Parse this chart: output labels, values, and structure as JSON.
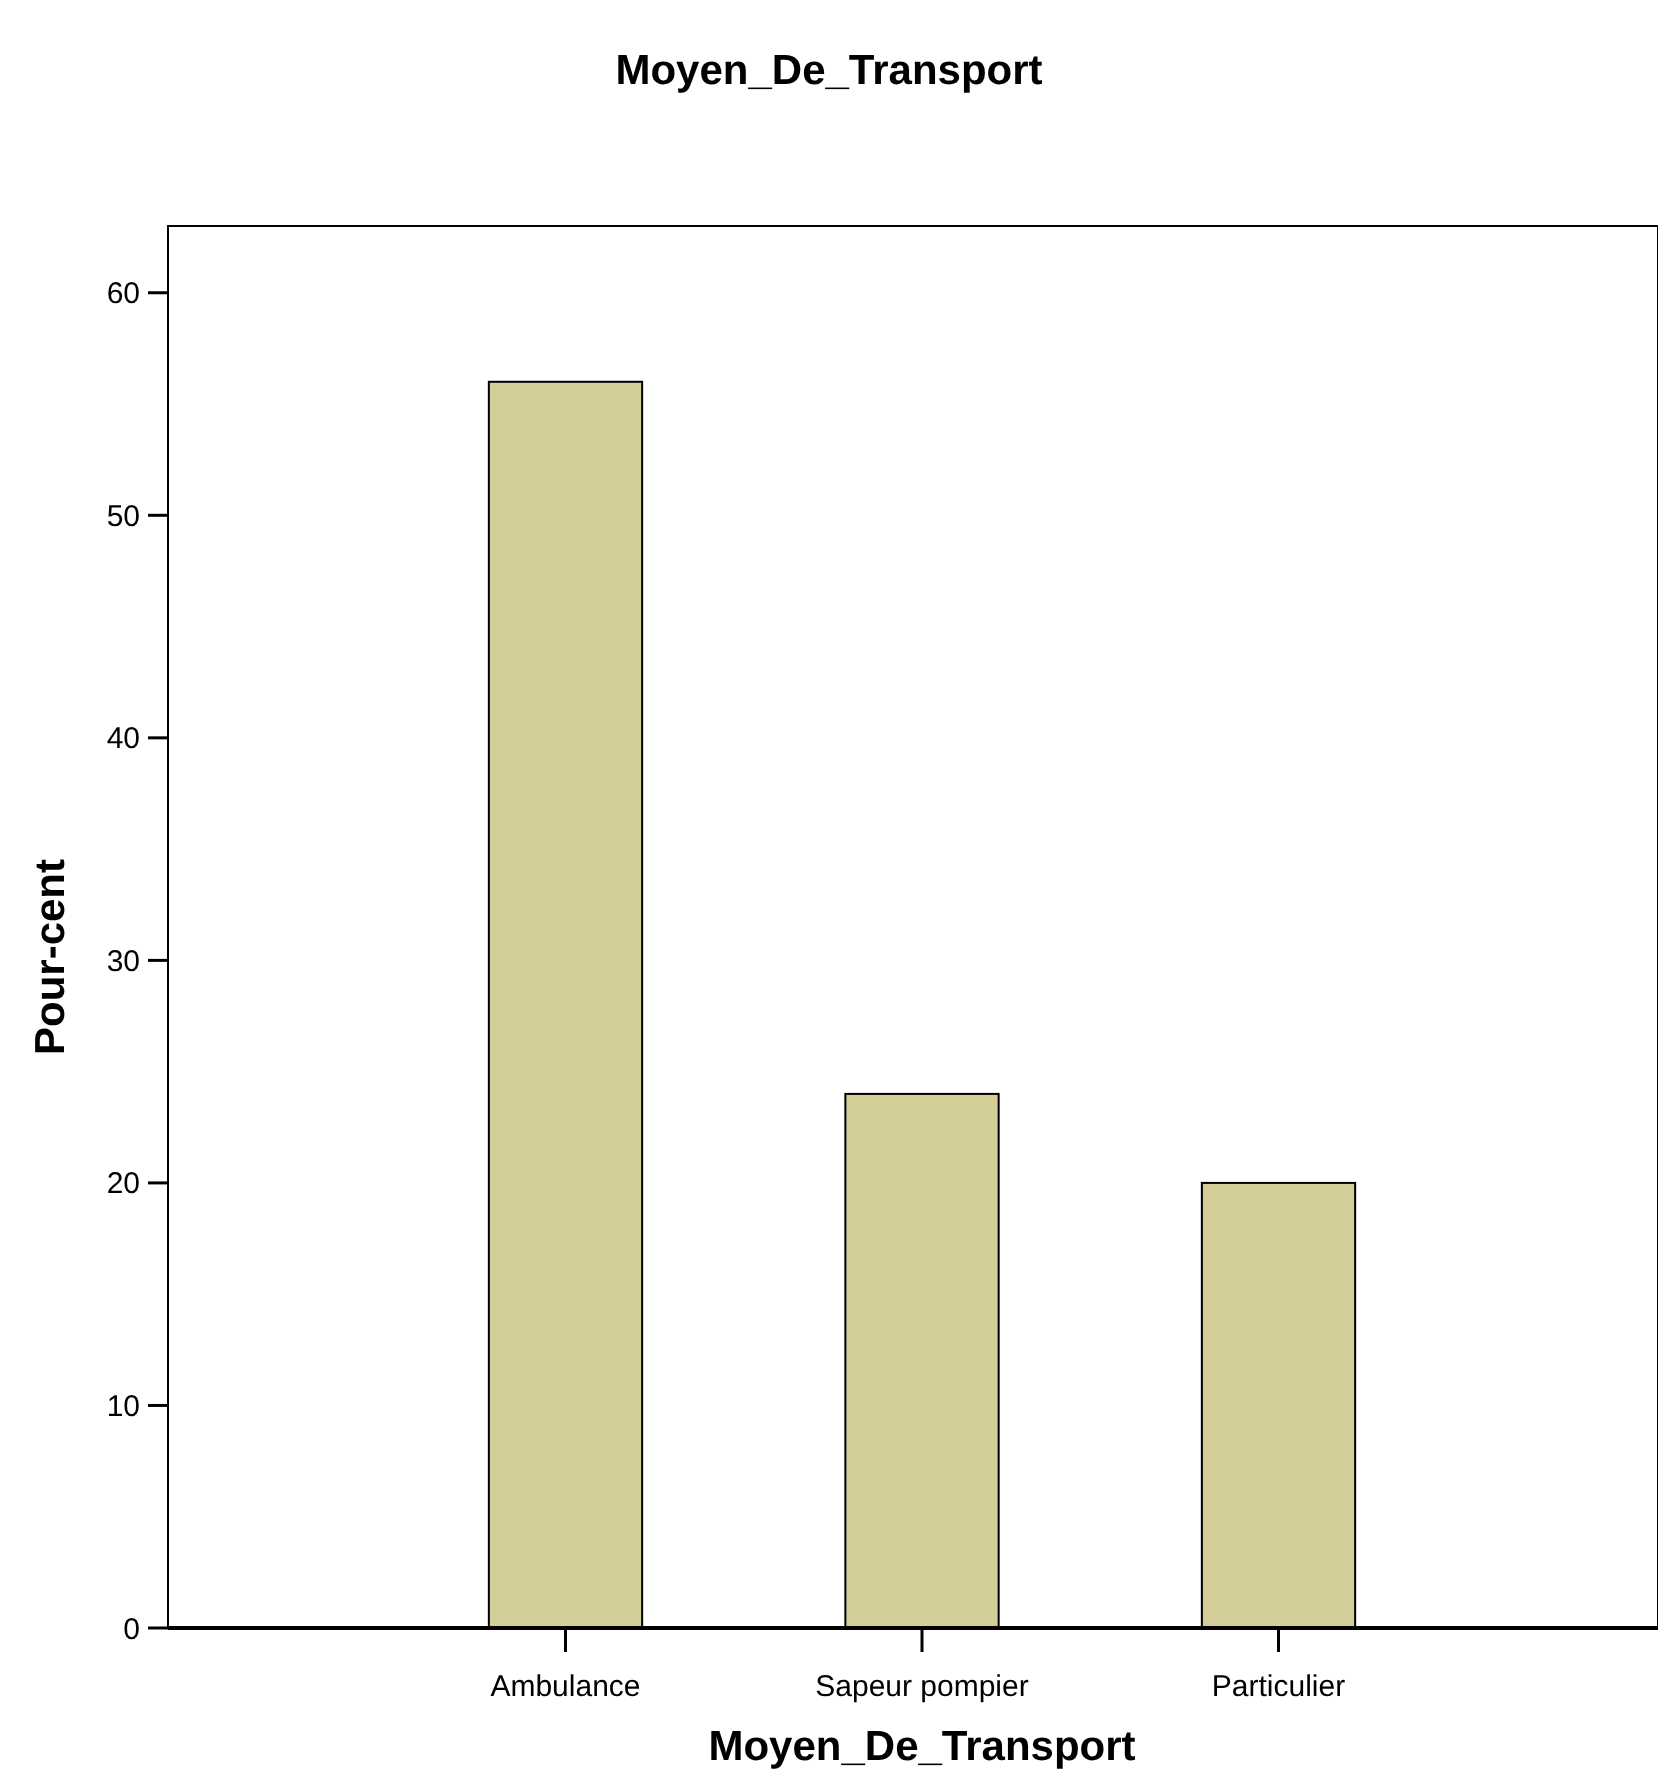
{
  "chart_data": {
    "type": "bar",
    "title": "Moyen_De_Transport",
    "xlabel": "Moyen_De_Transport",
    "ylabel": "Pour-cent",
    "categories": [
      "Ambulance",
      "Sapeur pompier",
      "Particulier"
    ],
    "values": [
      56,
      24,
      20
    ],
    "color": "#d3ce97",
    "ylim": [
      0,
      63
    ],
    "yticks": [
      0,
      10,
      20,
      30,
      40,
      50,
      60
    ],
    "grid": false
  }
}
